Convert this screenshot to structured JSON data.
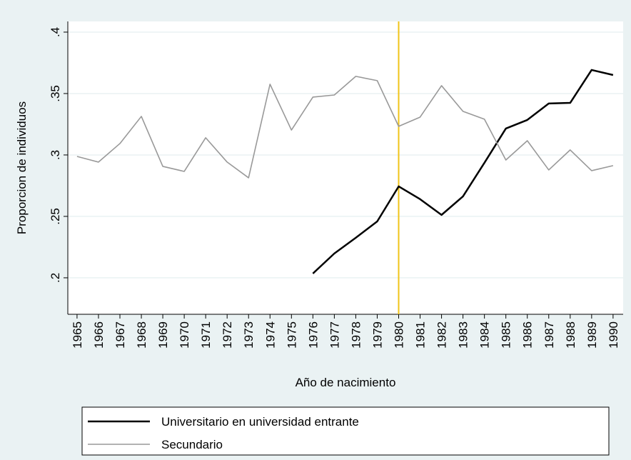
{
  "chart_data": {
    "type": "line",
    "x": [
      1965,
      1966,
      1967,
      1968,
      1969,
      1970,
      1971,
      1972,
      1973,
      1974,
      1975,
      1976,
      1977,
      1978,
      1979,
      1980,
      1981,
      1982,
      1983,
      1984,
      1985,
      1986,
      1987,
      1988,
      1989,
      1990
    ],
    "series": [
      {
        "name": "Universitario en universidad entrante",
        "color": "#000000",
        "width": 2.5,
        "values": [
          null,
          null,
          null,
          null,
          null,
          null,
          null,
          null,
          null,
          null,
          null,
          0.2035,
          0.2198,
          0.2326,
          0.2459,
          0.2744,
          0.264,
          0.2512,
          0.2663,
          0.2936,
          0.3215,
          0.3285,
          0.3419,
          0.3424,
          0.3692,
          0.3651
        ]
      },
      {
        "name": "Secundario",
        "color": "#999999",
        "width": 1.6,
        "values": [
          0.2988,
          0.2942,
          0.3093,
          0.3314,
          0.2907,
          0.2866,
          0.314,
          0.2942,
          0.2814,
          0.3576,
          0.3203,
          0.3471,
          0.3488,
          0.364,
          0.3605,
          0.3233,
          0.3308,
          0.3564,
          0.3355,
          0.3291,
          0.2959,
          0.3116,
          0.2878,
          0.3041,
          0.2872,
          0.2913
        ]
      }
    ],
    "xlabel": "Año de nacimiento",
    "ylabel": "Proporcion de individuos",
    "xlim": [
      1964.57,
      1990.47
    ],
    "ylim": [
      0.1703,
      0.4087
    ],
    "xticks": [
      1965,
      1966,
      1967,
      1968,
      1969,
      1970,
      1971,
      1972,
      1973,
      1974,
      1975,
      1976,
      1977,
      1978,
      1979,
      1980,
      1981,
      1982,
      1983,
      1984,
      1985,
      1986,
      1987,
      1988,
      1989,
      1990
    ],
    "yticks": [
      {
        "value": 0.2,
        "label": ".2"
      },
      {
        "value": 0.25,
        "label": ".25"
      },
      {
        "value": 0.3,
        "label": ".3"
      },
      {
        "value": 0.35,
        "label": ".35"
      },
      {
        "value": 0.4,
        "label": ".4"
      }
    ],
    "vline": 1980,
    "vline_color": "#f0c419",
    "grid": true
  }
}
